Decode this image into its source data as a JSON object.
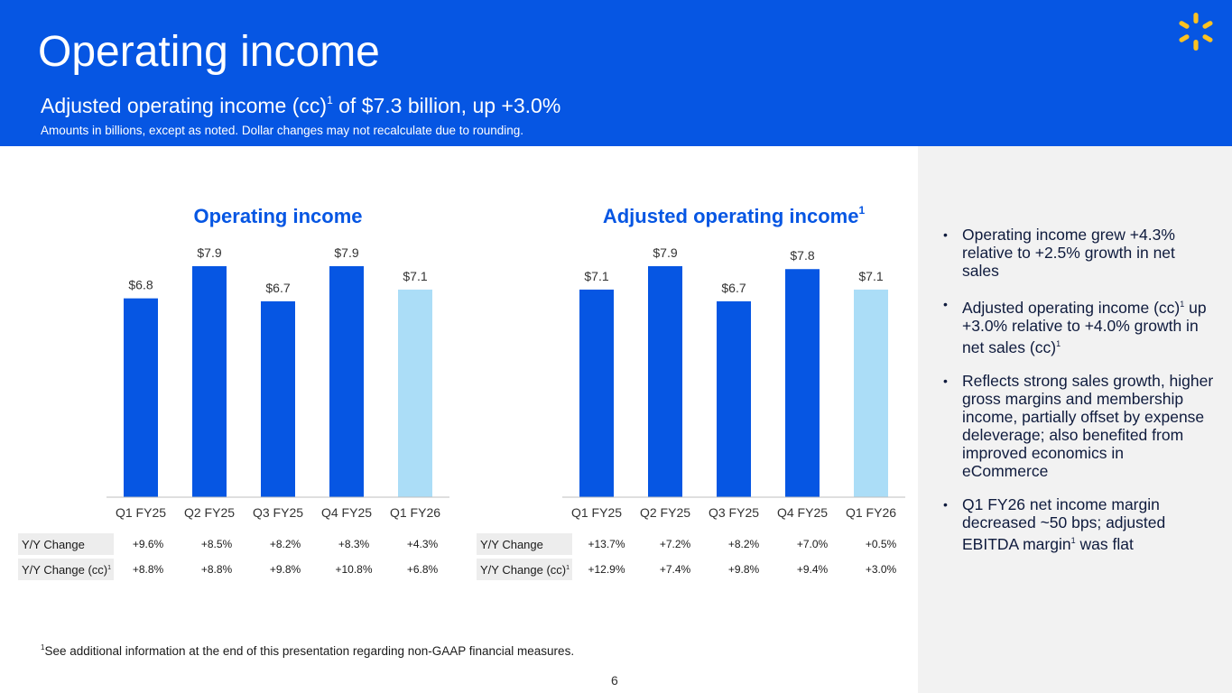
{
  "header": {
    "title": "Operating income",
    "subtitle": "Adjusted operating income (cc)",
    "subtitle_sup": "1",
    "subtitle_rest": " of $7.3 billion, up +3.0%",
    "note": "Amounts in billions, except as noted.  Dollar changes may not recalculate due to rounding.",
    "logo_icon": "spark-icon"
  },
  "colors": {
    "brand_blue": "#0656E3",
    "bar_current": "#ABDDF7",
    "panel_bg": "#F2F2F2",
    "label_bg": "#EDEDED"
  },
  "chart_data": [
    {
      "type": "bar",
      "title": "Operating income",
      "title_sup": "",
      "categories": [
        "Q1 FY25",
        "Q2 FY25",
        "Q3 FY25",
        "Q4 FY25",
        "Q1 FY26"
      ],
      "values": [
        6.8,
        7.9,
        6.7,
        7.9,
        7.1
      ],
      "data_labels": [
        "$6.8",
        "$7.9",
        "$6.7",
        "$7.9",
        "$7.1"
      ],
      "highlight_index": 4,
      "ylim": [
        0,
        7.9
      ],
      "grid": false,
      "xlabel": "",
      "ylabel": "",
      "table": {
        "rows": [
          {
            "label": "Y/Y Change",
            "sup": "",
            "values": [
              "+9.6%",
              "+8.5%",
              "+8.2%",
              "+8.3%",
              "+4.3%"
            ]
          },
          {
            "label": "Y/Y Change (cc)",
            "sup": "1",
            "values": [
              "+8.8%",
              "+8.8%",
              "+9.8%",
              "+10.8%",
              "+6.8%"
            ]
          }
        ]
      }
    },
    {
      "type": "bar",
      "title": "Adjusted operating income",
      "title_sup": "1",
      "categories": [
        "Q1 FY25",
        "Q2 FY25",
        "Q3 FY25",
        "Q4 FY25",
        "Q1 FY26"
      ],
      "values": [
        7.1,
        7.9,
        6.7,
        7.8,
        7.1
      ],
      "data_labels": [
        "$7.1",
        "$7.9",
        "$6.7",
        "$7.8",
        "$7.1"
      ],
      "highlight_index": 4,
      "ylim": [
        0,
        7.9
      ],
      "grid": false,
      "xlabel": "",
      "ylabel": "",
      "table": {
        "rows": [
          {
            "label": "Y/Y Change",
            "sup": "",
            "values": [
              "+13.7%",
              "+7.2%",
              "+8.2%",
              "+7.0%",
              "+0.5%"
            ]
          },
          {
            "label": "Y/Y Change (cc)",
            "sup": "1",
            "values": [
              "+12.9%",
              "+7.4%",
              "+9.8%",
              "+9.4%",
              "+3.0%"
            ]
          }
        ]
      }
    }
  ],
  "bullets": [
    {
      "segments": [
        {
          "t": "Operating income grew +4.3% relative to +2.5% growth in net sales"
        }
      ]
    },
    {
      "segments": [
        {
          "t": "Adjusted operating income (cc)"
        },
        {
          "sup": "1"
        },
        {
          "t": " up +3.0% relative to +4.0% growth in net sales (cc)"
        },
        {
          "sup": "1"
        }
      ]
    },
    {
      "segments": [
        {
          "t": "Reflects strong sales growth, higher gross margins and membership income, partially offset by expense deleverage; also benefited from improved economics in eCommerce"
        }
      ]
    },
    {
      "segments": [
        {
          "t": "Q1 FY26 net income margin decreased ~50 bps; adjusted EBITDA margin"
        },
        {
          "sup": "1"
        },
        {
          "t": " was flat"
        }
      ]
    }
  ],
  "bullet_marker": "•",
  "footnote": {
    "sup": "1",
    "text": "See additional information at the end of this presentation regarding non-GAAP financial measures."
  },
  "page_number": "6"
}
